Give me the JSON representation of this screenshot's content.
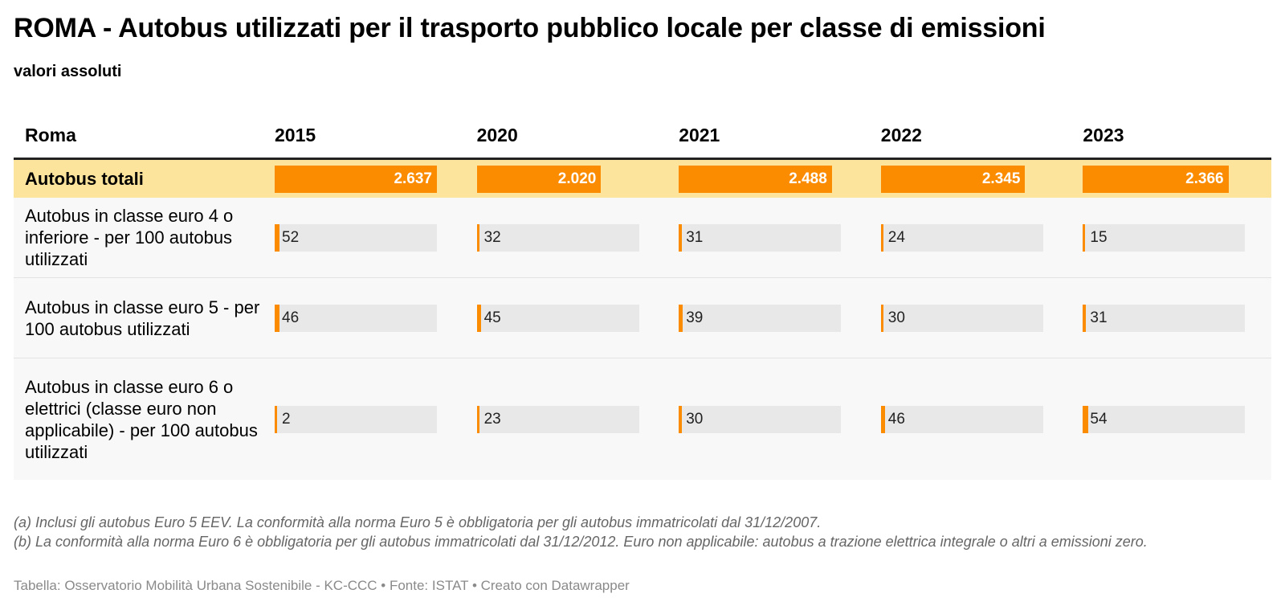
{
  "header": {
    "title": "ROMA - Autobus utilizzati per il trasporto pubblico locale per classe di emissioni",
    "subtitle": "valori assoluti"
  },
  "colors": {
    "accent": "#fb8c00",
    "highlight_row": "#fde49c",
    "bar_background": "#e8e8e8"
  },
  "chart_data": {
    "type": "table",
    "row_header": "Roma",
    "years": [
      "2015",
      "2020",
      "2021",
      "2022",
      "2023"
    ],
    "rows": [
      {
        "label": "Autobus totali",
        "values": [
          2637,
          2020,
          2488,
          2345,
          2366
        ],
        "display": [
          "2.637",
          "2.020",
          "2.488",
          "2.345",
          "2.366"
        ],
        "max": 2637
      },
      {
        "label": "Autobus in classe euro 4 o inferiore - per 100 autobus utilizzati",
        "values": [
          52,
          32,
          31,
          24,
          15
        ],
        "display": [
          "52",
          "32",
          "31",
          "24",
          "15"
        ],
        "max": 100
      },
      {
        "label": "Autobus in classe euro 5 - per 100 autobus utilizzati",
        "values": [
          46,
          45,
          39,
          30,
          31
        ],
        "display": [
          "46",
          "45",
          "39",
          "30",
          "31"
        ],
        "max": 100
      },
      {
        "label": "Autobus in classe euro 6 o elettrici (classe euro non applicabile) - per 100 autobus utilizzati",
        "values": [
          2,
          23,
          30,
          46,
          54
        ],
        "display": [
          "2",
          "23",
          "30",
          "46",
          "54"
        ],
        "max": 100
      }
    ]
  },
  "notes": {
    "a": "(a) Inclusi gli autobus Euro 5 EEV. La conformità alla norma Euro 5 è obbligatoria per gli autobus immatricolati dal 31/12/2007.",
    "b": "(b) La conformità alla norma Euro 6 è obbligatoria per gli autobus immatricolati dal 31/12/2012. Euro non applicabile: autobus a trazione elettrica integrale o altri a emissioni zero."
  },
  "source": "Tabella: Osservatorio Mobilità Urbana Sostenibile - KC-CCC • Fonte: ISTAT • Creato con Datawrapper"
}
